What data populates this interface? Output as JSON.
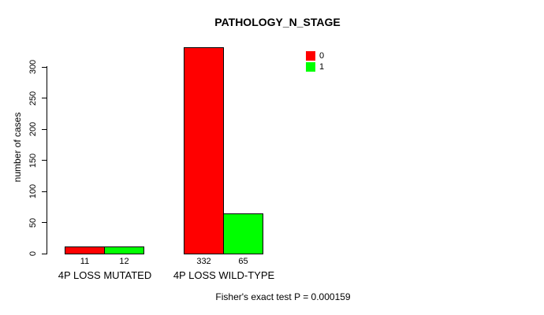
{
  "title": "PATHOLOGY_N_STAGE",
  "footer": "Fisher's exact test P = 0.000159",
  "colors": {
    "series0": "#FF0000",
    "series1": "#00FF00",
    "axis": "#000000",
    "background": "#FFFFFF"
  },
  "chart_data": {
    "type": "bar",
    "title": "PATHOLOGY_N_STAGE",
    "xlabel": "",
    "ylabel": "number of cases",
    "categories": [
      "4P LOSS MUTATED",
      "4P LOSS WILD-TYPE"
    ],
    "series": [
      {
        "name": "0",
        "color": "#FF0000",
        "values": [
          11,
          332
        ]
      },
      {
        "name": "1",
        "color": "#00FF00",
        "values": [
          12,
          65
        ]
      }
    ],
    "bar_value_labels": [
      [
        "11",
        "12"
      ],
      [
        "332",
        "65"
      ]
    ],
    "yticks": [
      0,
      50,
      100,
      150,
      200,
      250,
      300
    ],
    "ylim": [
      0,
      332
    ],
    "grid": false,
    "legend_position": "top-right",
    "annotation": "Fisher's exact test P = 0.000159"
  }
}
